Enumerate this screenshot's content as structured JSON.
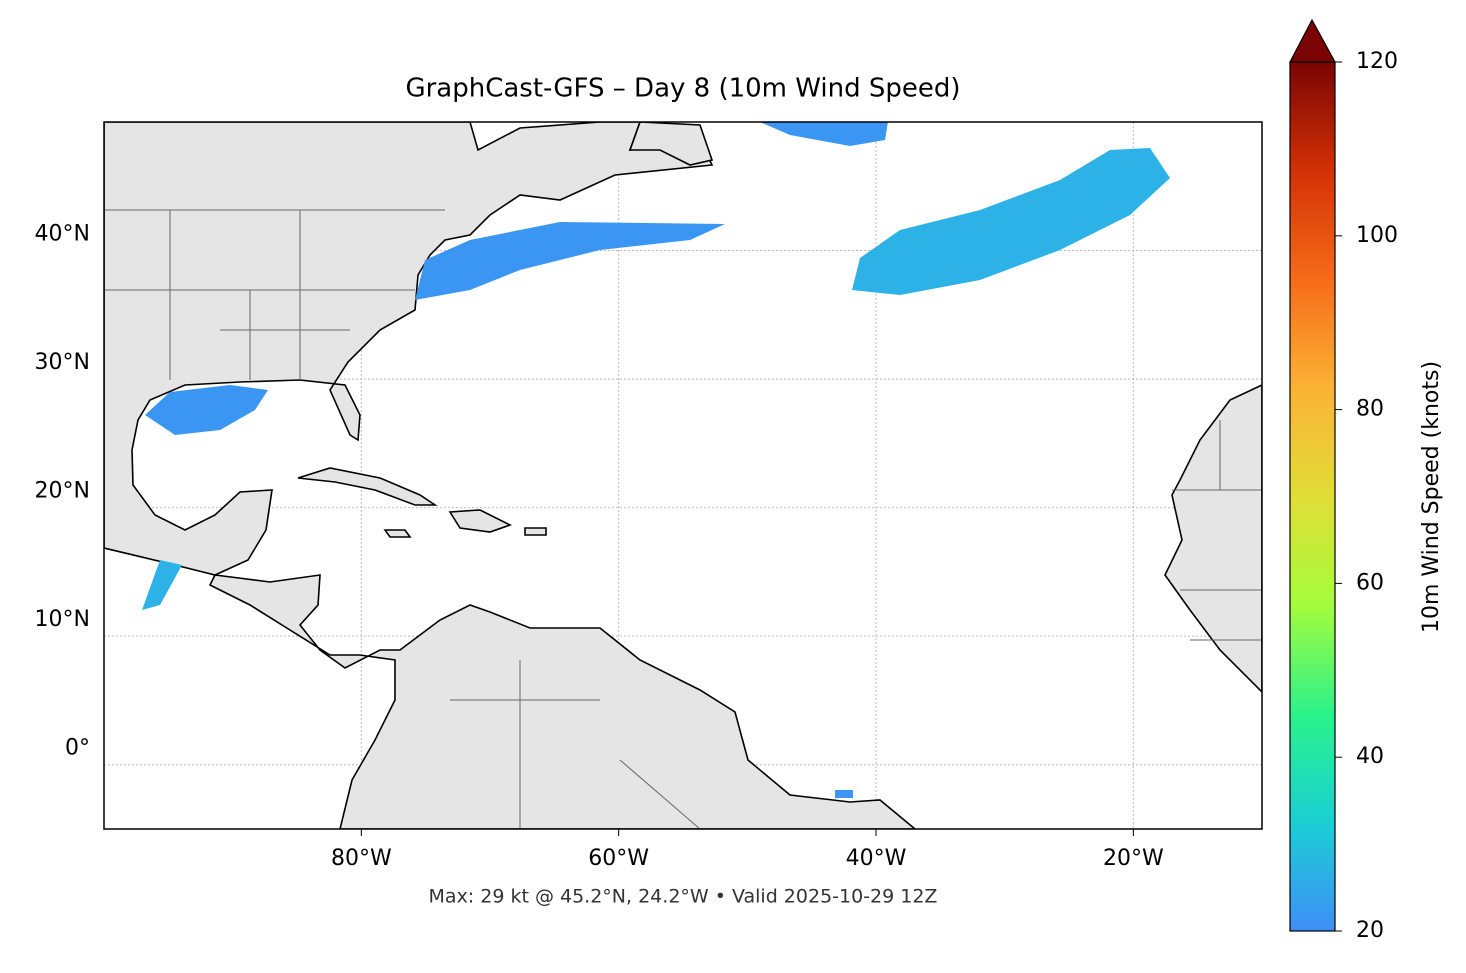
{
  "map": {
    "title": "GraphCast-GFS – Day 8 (10m Wind Speed)",
    "footer": "Max: 29 kt @ 45.2°N, 24.2°W • Valid 2025-10-29 12Z",
    "lon_extent": [
      -100,
      -10
    ],
    "lat_extent": [
      -5,
      50
    ],
    "lon_ticks": [
      {
        "value": -80,
        "label": "80°W"
      },
      {
        "value": -60,
        "label": "60°W"
      },
      {
        "value": -40,
        "label": "40°W"
      },
      {
        "value": -20,
        "label": "20°W"
      }
    ],
    "lat_ticks": [
      {
        "value": 0,
        "label": "0°"
      },
      {
        "value": 10,
        "label": "10°N"
      },
      {
        "value": 20,
        "label": "20°N"
      },
      {
        "value": 30,
        "label": "30°N"
      },
      {
        "value": 40,
        "label": "40°N"
      }
    ],
    "grid": true,
    "colorbar": {
      "label": "10m Wind Speed (knots)",
      "lim": [
        20,
        120
      ],
      "ticks": [
        20,
        40,
        60,
        80,
        100,
        120
      ],
      "colors": [
        "#3e8ef7",
        "#1bcfd4",
        "#2cf28a",
        "#a4fc3c",
        "#e1dd37",
        "#fbb235",
        "#f66b19",
        "#d23105",
        "#7a0403"
      ]
    }
  }
}
